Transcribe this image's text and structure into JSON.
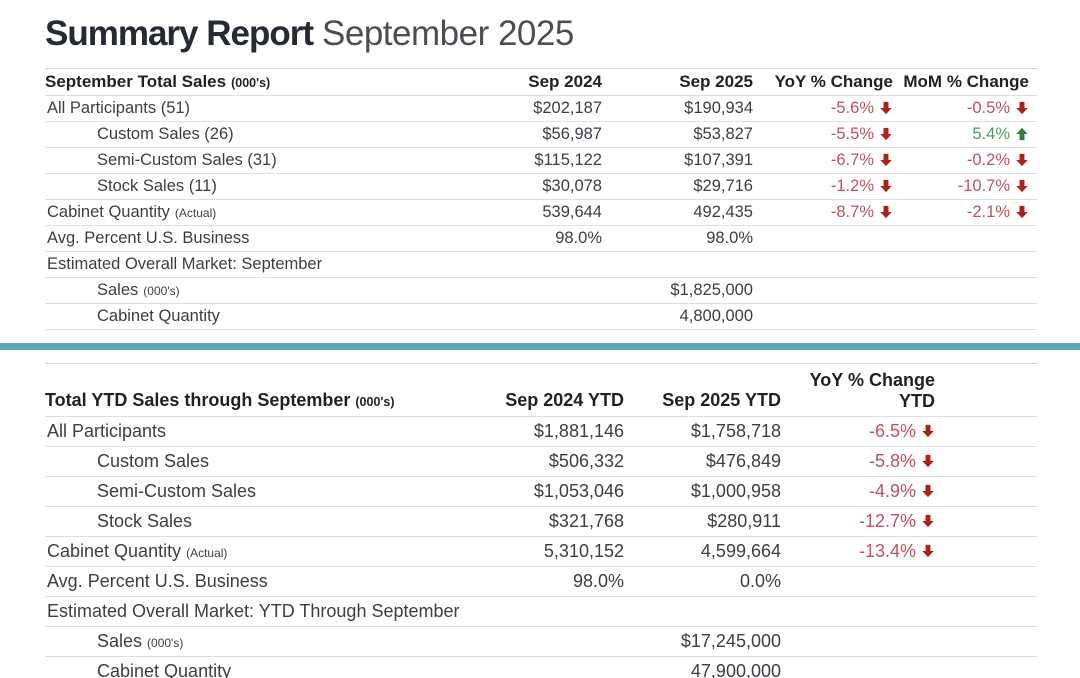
{
  "title": {
    "bold": "Summary Report",
    "regular": "September 2025"
  },
  "colors": {
    "title_dark": "#262a35",
    "negative_text": "#c44f5e",
    "negative_arrow": "#b21f16",
    "positive_text": "#4f9a5f",
    "positive_arrow": "#2f7d43",
    "divider_teal": "#5aa9b8",
    "row_border": "#e0e0e0"
  },
  "table1": {
    "title": "September Total Sales",
    "title_suffix": "(000's)",
    "columns": [
      "Sep 2024",
      "Sep 2025",
      "YoY % Change",
      "MoM % Change"
    ],
    "rows": [
      {
        "label": "All Participants (51)",
        "indent": 0,
        "cells": [
          {
            "t": "$202,187"
          },
          {
            "t": "$190,934"
          },
          {
            "t": "-5.6%",
            "dir": "down"
          },
          {
            "t": "-0.5%",
            "dir": "down"
          }
        ]
      },
      {
        "label": "Custom Sales (26)",
        "indent": 1,
        "cells": [
          {
            "t": "$56,987"
          },
          {
            "t": "$53,827"
          },
          {
            "t": "-5.5%",
            "dir": "down"
          },
          {
            "t": "5.4%",
            "dir": "up"
          }
        ]
      },
      {
        "label": "Semi-Custom Sales (31)",
        "indent": 1,
        "cells": [
          {
            "t": "$115,122"
          },
          {
            "t": "$107,391"
          },
          {
            "t": "-6.7%",
            "dir": "down"
          },
          {
            "t": "-0.2%",
            "dir": "down"
          }
        ]
      },
      {
        "label": "Stock Sales (11)",
        "indent": 1,
        "cells": [
          {
            "t": "$30,078"
          },
          {
            "t": "$29,716"
          },
          {
            "t": "-1.2%",
            "dir": "down"
          },
          {
            "t": "-10.7%",
            "dir": "down"
          }
        ]
      },
      {
        "label": "Cabinet Quantity",
        "suffix": "(Actual)",
        "indent": 0,
        "cells": [
          {
            "t": "539,644"
          },
          {
            "t": "492,435"
          },
          {
            "t": "-8.7%",
            "dir": "down"
          },
          {
            "t": "-2.1%",
            "dir": "down"
          }
        ]
      },
      {
        "label": "Avg. Percent U.S. Business",
        "indent": 0,
        "cells": [
          {
            "t": "98.0%"
          },
          {
            "t": "98.0%"
          },
          null,
          null
        ]
      },
      {
        "label": "Estimated Overall Market: September",
        "indent": 0,
        "cells": [
          null,
          null,
          null,
          null
        ]
      },
      {
        "label": "Sales",
        "suffix": "(000's)",
        "indent": 1,
        "cells": [
          null,
          {
            "t": "$1,825,000"
          },
          null,
          null
        ]
      },
      {
        "label": "Cabinet Quantity",
        "indent": 1,
        "cells": [
          null,
          {
            "t": "4,800,000"
          },
          null,
          null
        ]
      }
    ]
  },
  "table2": {
    "title": "Total YTD Sales through September",
    "title_suffix": "(000's)",
    "columns": [
      "Sep 2024 YTD",
      "Sep 2025 YTD",
      "YoY % Change\nYTD"
    ],
    "rows": [
      {
        "label": "All Participants",
        "indent": 0,
        "cells": [
          {
            "t": "$1,881,146"
          },
          {
            "t": "$1,758,718"
          },
          {
            "t": "-6.5%",
            "dir": "down"
          }
        ]
      },
      {
        "label": "Custom Sales",
        "indent": 1,
        "cells": [
          {
            "t": "$506,332"
          },
          {
            "t": "$476,849"
          },
          {
            "t": "-5.8%",
            "dir": "down"
          }
        ]
      },
      {
        "label": "Semi-Custom Sales",
        "indent": 1,
        "cells": [
          {
            "t": "$1,053,046"
          },
          {
            "t": "$1,000,958"
          },
          {
            "t": "-4.9%",
            "dir": "down"
          }
        ]
      },
      {
        "label": "Stock Sales",
        "indent": 1,
        "cells": [
          {
            "t": "$321,768"
          },
          {
            "t": "$280,911"
          },
          {
            "t": "-12.7%",
            "dir": "down"
          }
        ]
      },
      {
        "label": "Cabinet Quantity",
        "suffix": "(Actual)",
        "indent": 0,
        "cells": [
          {
            "t": "5,310,152"
          },
          {
            "t": "4,599,664"
          },
          {
            "t": "-13.4%",
            "dir": "down"
          }
        ]
      },
      {
        "label": "Avg. Percent U.S. Business",
        "indent": 0,
        "cells": [
          {
            "t": "98.0%"
          },
          {
            "t": "0.0%"
          },
          null
        ]
      },
      {
        "label": "Estimated Overall Market: YTD Through September",
        "indent": 0,
        "cells": [
          null,
          null,
          null
        ]
      },
      {
        "label": "Sales",
        "suffix": "(000's)",
        "indent": 1,
        "cells": [
          null,
          {
            "t": "$17,245,000"
          },
          null
        ]
      },
      {
        "label": "Cabinet Quantity",
        "indent": 1,
        "cells": [
          null,
          {
            "t": "47,900,000"
          },
          null
        ]
      }
    ]
  }
}
